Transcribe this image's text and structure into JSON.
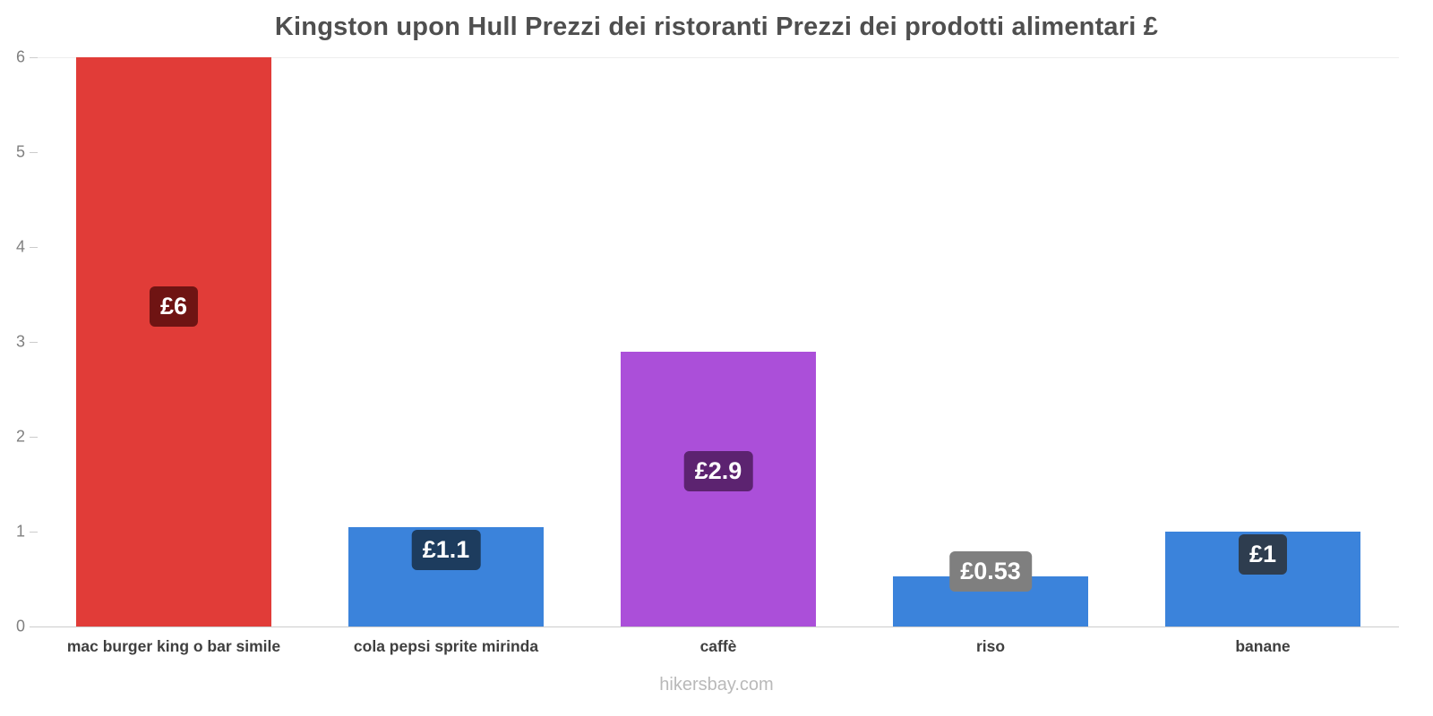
{
  "title": "Kingston upon Hull Prezzi dei ristoranti Prezzi dei prodotti alimentari £",
  "footer": "hikersbay.com",
  "chart_data": {
    "type": "bar",
    "title": "Kingston upon Hull Prezzi dei ristoranti Prezzi dei prodotti alimentari £",
    "categories": [
      "mac burger king o bar simile",
      "cola pepsi sprite mirinda",
      "caffè",
      "riso",
      "banane"
    ],
    "values": [
      6,
      1.05,
      2.9,
      0.53,
      1
    ],
    "value_labels": [
      "£6",
      "£1.1",
      "£2.9",
      "£0.53",
      "£1"
    ],
    "bar_colors": [
      "#e13c38",
      "#3b83db",
      "#ab4fd9",
      "#3b83db",
      "#3b83db"
    ],
    "badge_colors": [
      "#6f1413",
      "#1d3c5e",
      "#5c2370",
      "#7f7f7f",
      "#2e3d4f"
    ],
    "xlabel": "",
    "ylabel": "",
    "ylim": [
      0,
      6
    ],
    "yticks": [
      0,
      1,
      2,
      3,
      4,
      5,
      6
    ],
    "grid": false,
    "legend": false,
    "currency": "£",
    "watermark": "hikersbay.com"
  }
}
